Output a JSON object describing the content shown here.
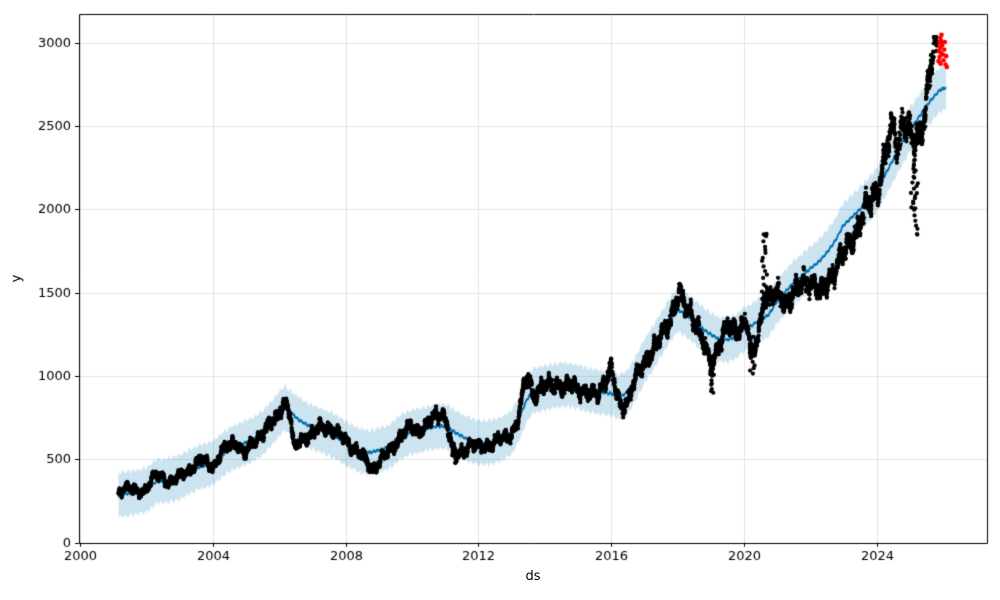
{
  "figure": {
    "xlabel": "ds",
    "ylabel": "y",
    "title": ""
  },
  "chart_data": {
    "type": "scatter",
    "description": "Prophet-style time series forecast: black daily observations, blue yhat trend line with light-blue uncertainty band, red anomaly points at the end",
    "title": "",
    "xlabel": "ds",
    "ylabel": "y",
    "xlim": [
      1999.96,
      2027.33
    ],
    "ylim": [
      0,
      3173
    ],
    "xticks": [
      2000,
      2004,
      2008,
      2012,
      2016,
      2020,
      2024
    ],
    "yticks": [
      0,
      500,
      1000,
      1500,
      2000,
      2500,
      3000
    ],
    "grid": true,
    "legend_position": "none",
    "colors": {
      "actuals": "#000000",
      "forecast_line": "#0072B2",
      "uncertainty_band": "rgba(0,114,178,0.2)",
      "anomalies": "#ff0000",
      "gridline": "#e5e5e5",
      "spine": "#000000"
    },
    "series": [
      {
        "name": "actuals",
        "type": "scatter",
        "color": "#000000",
        "points": [
          [
            2001.15,
            300
          ],
          [
            2001.35,
            340
          ],
          [
            2001.55,
            315
          ],
          [
            2001.75,
            300
          ],
          [
            2001.95,
            318
          ],
          [
            2002.2,
            390
          ],
          [
            2002.45,
            400
          ],
          [
            2002.65,
            365
          ],
          [
            2002.9,
            380
          ],
          [
            2003.15,
            420
          ],
          [
            2003.4,
            455
          ],
          [
            2003.65,
            500
          ],
          [
            2003.85,
            470
          ],
          [
            2004.05,
            465
          ],
          [
            2004.25,
            540
          ],
          [
            2004.5,
            590
          ],
          [
            2004.7,
            610
          ],
          [
            2004.95,
            520
          ],
          [
            2005.2,
            600
          ],
          [
            2005.45,
            650
          ],
          [
            2005.7,
            700
          ],
          [
            2005.95,
            760
          ],
          [
            2006.1,
            845
          ],
          [
            2006.3,
            800
          ],
          [
            2006.45,
            545
          ],
          [
            2006.6,
            620
          ],
          [
            2006.8,
            640
          ],
          [
            2007.0,
            645
          ],
          [
            2007.2,
            690
          ],
          [
            2007.45,
            700
          ],
          [
            2007.65,
            665
          ],
          [
            2007.9,
            630
          ],
          [
            2008.1,
            600
          ],
          [
            2008.35,
            545
          ],
          [
            2008.6,
            495
          ],
          [
            2008.8,
            440
          ],
          [
            2009.0,
            480
          ],
          [
            2009.2,
            520
          ],
          [
            2009.45,
            590
          ],
          [
            2009.7,
            650
          ],
          [
            2009.95,
            690
          ],
          [
            2010.2,
            680
          ],
          [
            2010.45,
            700
          ],
          [
            2010.7,
            760
          ],
          [
            2010.9,
            790
          ],
          [
            2011.05,
            720
          ],
          [
            2011.2,
            560
          ],
          [
            2011.35,
            520
          ],
          [
            2011.55,
            560
          ],
          [
            2011.75,
            590
          ],
          [
            2011.95,
            570
          ],
          [
            2012.2,
            580
          ],
          [
            2012.45,
            600
          ],
          [
            2012.7,
            620
          ],
          [
            2012.95,
            655
          ],
          [
            2013.15,
            700
          ],
          [
            2013.35,
            900
          ],
          [
            2013.5,
            1010
          ],
          [
            2013.65,
            890
          ],
          [
            2013.85,
            920
          ],
          [
            2014.1,
            940
          ],
          [
            2014.35,
            960
          ],
          [
            2014.6,
            920
          ],
          [
            2014.85,
            950
          ],
          [
            2015.1,
            920
          ],
          [
            2015.35,
            880
          ],
          [
            2015.6,
            900
          ],
          [
            2015.85,
            990
          ],
          [
            2016.0,
            1040
          ],
          [
            2016.15,
            900
          ],
          [
            2016.3,
            810
          ],
          [
            2016.5,
            860
          ],
          [
            2016.7,
            960
          ],
          [
            2016.9,
            1040
          ],
          [
            2017.1,
            1120
          ],
          [
            2017.3,
            1170
          ],
          [
            2017.5,
            1230
          ],
          [
            2017.7,
            1310
          ],
          [
            2017.9,
            1420
          ],
          [
            2018.05,
            1490
          ],
          [
            2018.25,
            1400
          ],
          [
            2018.45,
            1380
          ],
          [
            2018.65,
            1280
          ],
          [
            2018.85,
            1150
          ],
          [
            2019.0,
            1060
          ],
          [
            2019.15,
            1140
          ],
          [
            2019.35,
            1250
          ],
          [
            2019.55,
            1290
          ],
          [
            2019.75,
            1270
          ],
          [
            2019.95,
            1320
          ],
          [
            2020.1,
            1330
          ],
          [
            2020.22,
            1080
          ],
          [
            2020.35,
            1180
          ],
          [
            2020.5,
            1320
          ],
          [
            2020.62,
            1520
          ],
          [
            2020.75,
            1450
          ],
          [
            2020.9,
            1470
          ],
          [
            2021.1,
            1490
          ],
          [
            2021.3,
            1450
          ],
          [
            2021.5,
            1480
          ],
          [
            2021.7,
            1540
          ],
          [
            2021.9,
            1580
          ],
          [
            2022.1,
            1560
          ],
          [
            2022.3,
            1480
          ],
          [
            2022.5,
            1560
          ],
          [
            2022.7,
            1640
          ],
          [
            2022.9,
            1680
          ],
          [
            2023.1,
            1760
          ],
          [
            2023.3,
            1850
          ],
          [
            2023.5,
            1920
          ],
          [
            2023.7,
            2000
          ],
          [
            2023.9,
            2080
          ],
          [
            2024.1,
            2180
          ],
          [
            2024.3,
            2350
          ],
          [
            2024.5,
            2480
          ],
          [
            2024.65,
            2400
          ],
          [
            2024.8,
            2550
          ],
          [
            2024.95,
            2480
          ],
          [
            2025.1,
            2380
          ],
          [
            2025.3,
            2450
          ],
          [
            2025.45,
            2600
          ],
          [
            2025.6,
            2800
          ],
          [
            2025.72,
            2950
          ],
          [
            2025.82,
            2960
          ]
        ]
      },
      {
        "name": "forecast_yhat",
        "type": "line",
        "color": "#0072B2",
        "points": [
          [
            2001.15,
            285
          ],
          [
            2001.4,
            295
          ],
          [
            2001.7,
            300
          ],
          [
            2002.0,
            318
          ],
          [
            2002.3,
            368
          ],
          [
            2002.6,
            372
          ],
          [
            2002.9,
            385
          ],
          [
            2003.2,
            415
          ],
          [
            2003.5,
            448
          ],
          [
            2003.8,
            465
          ],
          [
            2004.0,
            480
          ],
          [
            2004.3,
            530
          ],
          [
            2004.6,
            570
          ],
          [
            2004.9,
            595
          ],
          [
            2005.2,
            618
          ],
          [
            2005.5,
            660
          ],
          [
            2005.8,
            725
          ],
          [
            2006.0,
            775
          ],
          [
            2006.15,
            808
          ],
          [
            2006.35,
            780
          ],
          [
            2006.6,
            735
          ],
          [
            2006.9,
            700
          ],
          [
            2007.2,
            678
          ],
          [
            2007.5,
            652
          ],
          [
            2007.8,
            625
          ],
          [
            2008.1,
            585
          ],
          [
            2008.4,
            555
          ],
          [
            2008.7,
            540
          ],
          [
            2009.0,
            555
          ],
          [
            2009.3,
            575
          ],
          [
            2009.6,
            625
          ],
          [
            2009.9,
            660
          ],
          [
            2010.2,
            672
          ],
          [
            2010.5,
            688
          ],
          [
            2010.8,
            700
          ],
          [
            2011.05,
            695
          ],
          [
            2011.3,
            662
          ],
          [
            2011.6,
            628
          ],
          [
            2011.9,
            605
          ],
          [
            2012.2,
            598
          ],
          [
            2012.5,
            608
          ],
          [
            2012.8,
            635
          ],
          [
            2013.0,
            662
          ],
          [
            2013.2,
            735
          ],
          [
            2013.45,
            855
          ],
          [
            2013.65,
            915
          ],
          [
            2013.9,
            925
          ],
          [
            2014.2,
            938
          ],
          [
            2014.5,
            950
          ],
          [
            2014.8,
            945
          ],
          [
            2015.1,
            928
          ],
          [
            2015.4,
            912
          ],
          [
            2015.7,
            902
          ],
          [
            2016.0,
            895
          ],
          [
            2016.25,
            872
          ],
          [
            2016.5,
            905
          ],
          [
            2016.75,
            990
          ],
          [
            2017.0,
            1090
          ],
          [
            2017.25,
            1165
          ],
          [
            2017.5,
            1250
          ],
          [
            2017.75,
            1330
          ],
          [
            2018.0,
            1400
          ],
          [
            2018.25,
            1368
          ],
          [
            2018.5,
            1330
          ],
          [
            2018.75,
            1285
          ],
          [
            2019.0,
            1250
          ],
          [
            2019.25,
            1222
          ],
          [
            2019.5,
            1218
          ],
          [
            2019.75,
            1235
          ],
          [
            2020.0,
            1280
          ],
          [
            2020.25,
            1305
          ],
          [
            2020.5,
            1340
          ],
          [
            2020.75,
            1368
          ],
          [
            2021.0,
            1450
          ],
          [
            2021.25,
            1505
          ],
          [
            2021.5,
            1560
          ],
          [
            2021.75,
            1600
          ],
          [
            2022.0,
            1645
          ],
          [
            2022.25,
            1685
          ],
          [
            2022.5,
            1740
          ],
          [
            2022.75,
            1810
          ],
          [
            2023.0,
            1905
          ],
          [
            2023.25,
            1952
          ],
          [
            2023.5,
            2000
          ],
          [
            2023.75,
            2055
          ],
          [
            2024.0,
            2115
          ],
          [
            2024.25,
            2205
          ],
          [
            2024.5,
            2300
          ],
          [
            2024.75,
            2390
          ],
          [
            2025.0,
            2480
          ],
          [
            2025.25,
            2545
          ],
          [
            2025.5,
            2620
          ],
          [
            2025.7,
            2670
          ],
          [
            2025.9,
            2716
          ],
          [
            2026.1,
            2732
          ]
        ]
      },
      {
        "name": "uncertainty_interval",
        "type": "band",
        "color": "rgba(0,114,178,0.2)",
        "half_width": 132,
        "x_start": 2001.15,
        "x_end": 2026.1
      },
      {
        "name": "anomalies",
        "type": "scatter",
        "color": "#ff0000",
        "points": [
          [
            2025.87,
            2890
          ],
          [
            2025.88,
            2950
          ],
          [
            2025.89,
            3000
          ],
          [
            2025.9,
            2915
          ],
          [
            2025.91,
            2970
          ],
          [
            2025.92,
            3030
          ],
          [
            2025.93,
            2875
          ],
          [
            2025.94,
            2940
          ],
          [
            2025.95,
            3010
          ],
          [
            2025.96,
            3048
          ],
          [
            2025.98,
            2985
          ],
          [
            2026.0,
            2930
          ],
          [
            2026.02,
            2895
          ],
          [
            2026.04,
            2960
          ],
          [
            2026.06,
            3005
          ],
          [
            2026.08,
            2870
          ],
          [
            2026.1,
            2920
          ],
          [
            2026.12,
            2855
          ]
        ]
      }
    ],
    "outlier_columns": [
      {
        "x": 2019.08,
        "lo": 915,
        "hi": 1120,
        "n": 14
      },
      {
        "x": 2020.62,
        "lo": 1430,
        "hi": 1860,
        "n": 18
      },
      {
        "x": 2011.28,
        "lo": 470,
        "hi": 560,
        "n": 6
      },
      {
        "x": 2025.1,
        "lo": 1990,
        "hi": 2300,
        "n": 12
      },
      {
        "x": 2025.18,
        "lo": 1845,
        "hi": 2260,
        "n": 14
      },
      {
        "x": 2020.25,
        "lo": 1010,
        "hi": 1240,
        "n": 12
      }
    ],
    "lone_points": [
      [
        2011.3,
        480
      ],
      [
        2019.08,
        900
      ],
      [
        2025.22,
        1852
      ],
      [
        2020.6,
        1850
      ]
    ],
    "x_data_start": 2001.15,
    "x_data_end": 2025.82
  }
}
